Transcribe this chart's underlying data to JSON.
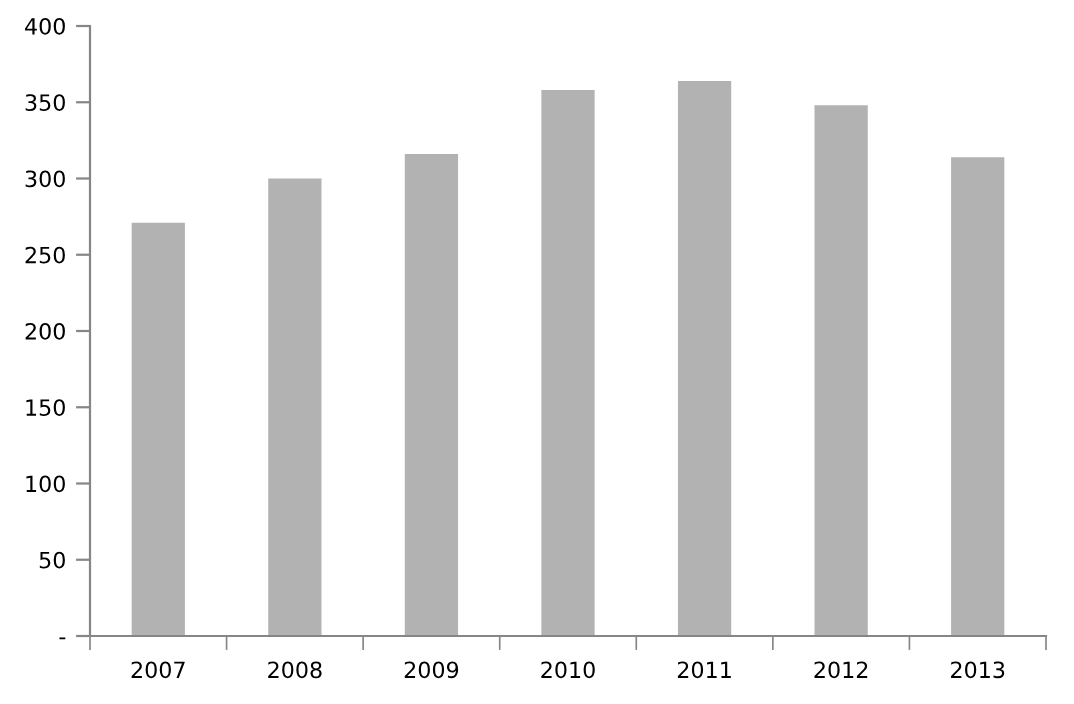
{
  "chart_data": {
    "type": "bar",
    "categories": [
      "2007",
      "2008",
      "2009",
      "2010",
      "2011",
      "2012",
      "2013"
    ],
    "values": [
      271,
      300,
      316,
      358,
      364,
      348,
      314
    ],
    "color": "#b2b2b2",
    "ylim": [
      0,
      400
    ],
    "yticks": [
      {
        "value": 0,
        "label": "-"
      },
      50,
      100,
      150,
      200,
      250,
      300,
      350,
      400
    ],
    "grid": false,
    "legend": false
  }
}
